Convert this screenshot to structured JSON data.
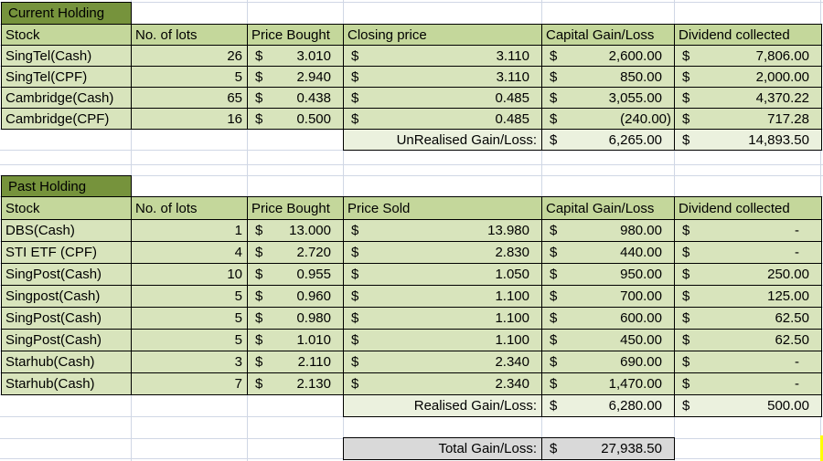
{
  "app": {
    "description": "Stock portfolio tracking spreadsheet"
  },
  "currency_symbol": "$",
  "sections": [
    {
      "title": "Current Holding",
      "headers": [
        "Stock",
        "No. of lots",
        "Price Bought",
        "Closing price",
        "Capital Gain/Loss",
        "Dividend collected"
      ],
      "rows": [
        {
          "stock": "SingTel(Cash)",
          "lots": "26",
          "bought": "3.010",
          "sold": "3.110",
          "gain": "2,600.00",
          "div": "7,806.00"
        },
        {
          "stock": "SingTel(CPF)",
          "lots": "5",
          "bought": "2.940",
          "sold": "3.110",
          "gain": "850.00",
          "div": "2,000.00"
        },
        {
          "stock": "Cambridge(Cash)",
          "lots": "65",
          "bought": "0.438",
          "sold": "0.485",
          "gain": "3,055.00",
          "div": "4,370.22"
        },
        {
          "stock": "Cambridge(CPF)",
          "lots": "16",
          "bought": "0.500",
          "sold": "0.485",
          "gain": "(240.00)",
          "div": "717.28"
        }
      ],
      "summary": {
        "label": "UnRealised Gain/Loss:",
        "gain": "6,265.00",
        "div": "14,893.50"
      }
    },
    {
      "title": "Past Holding",
      "headers": [
        "Stock",
        "No. of lots",
        "Price Bought",
        "Price Sold",
        "Capital Gain/Loss",
        "Dividend collected"
      ],
      "rows": [
        {
          "stock": "DBS(Cash)",
          "lots": "1",
          "bought": "13.000",
          "sold": "13.980",
          "gain": "980.00",
          "div": "-"
        },
        {
          "stock": "STI ETF (CPF)",
          "lots": "4",
          "bought": "2.720",
          "sold": "2.830",
          "gain": "440.00",
          "div": "-"
        },
        {
          "stock": "SingPost(Cash)",
          "lots": "10",
          "bought": "0.955",
          "sold": "1.050",
          "gain": "950.00",
          "div": "250.00"
        },
        {
          "stock": "Singpost(Cash)",
          "lots": "5",
          "bought": "0.960",
          "sold": "1.100",
          "gain": "700.00",
          "div": "125.00"
        },
        {
          "stock": "SingPost(Cash)",
          "lots": "5",
          "bought": "0.980",
          "sold": "1.100",
          "gain": "600.00",
          "div": "62.50"
        },
        {
          "stock": "SingPost(Cash)",
          "lots": "5",
          "bought": "1.010",
          "sold": "1.100",
          "gain": "450.00",
          "div": "62.50"
        },
        {
          "stock": "Starhub(Cash)",
          "lots": "3",
          "bought": "2.110",
          "sold": "2.340",
          "gain": "690.00",
          "div": "-"
        },
        {
          "stock": "Starhub(Cash)",
          "lots": "7",
          "bought": "2.130",
          "sold": "2.340",
          "gain": "1,470.00",
          "div": "-"
        }
      ],
      "summary": {
        "label": "Realised Gain/Loss:",
        "gain": "6,280.00",
        "div": "500.00"
      }
    }
  ],
  "total": {
    "label": "Total Gain/Loss:",
    "value": "27,938.50"
  },
  "colors": {
    "section_title_bg": "#76933C",
    "header_bg": "#C4D79B",
    "row_bg": "#D8E4BC",
    "summary_bg": "#EBF1DE",
    "total_bg": "#D9D9D9",
    "gridline": "#D0D7E5",
    "cell_border": "#000000",
    "highlight_sliver": "#FFFF00"
  }
}
